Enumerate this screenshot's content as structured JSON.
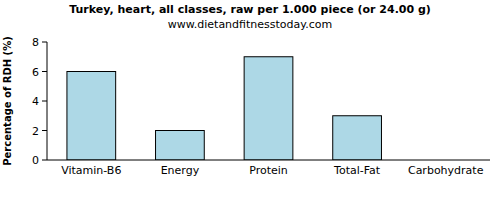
{
  "chart_data": {
    "type": "bar",
    "title": "Turkey, heart, all classes, raw per 1.000 piece (or 24.00 g)",
    "subtitle": "www.dietandfitnesstoday.com",
    "y_label": "Percentage of RDH (%)",
    "categories": [
      "Vitamin-B6",
      "Energy",
      "Protein",
      "Total-Fat",
      "Carbohydrate"
    ],
    "values": [
      6,
      2,
      7,
      3,
      0
    ],
    "color": "#add8e6",
    "ylim": [
      0,
      8
    ],
    "yticks": [
      0,
      2,
      4,
      6,
      8
    ],
    "grid": false
  }
}
